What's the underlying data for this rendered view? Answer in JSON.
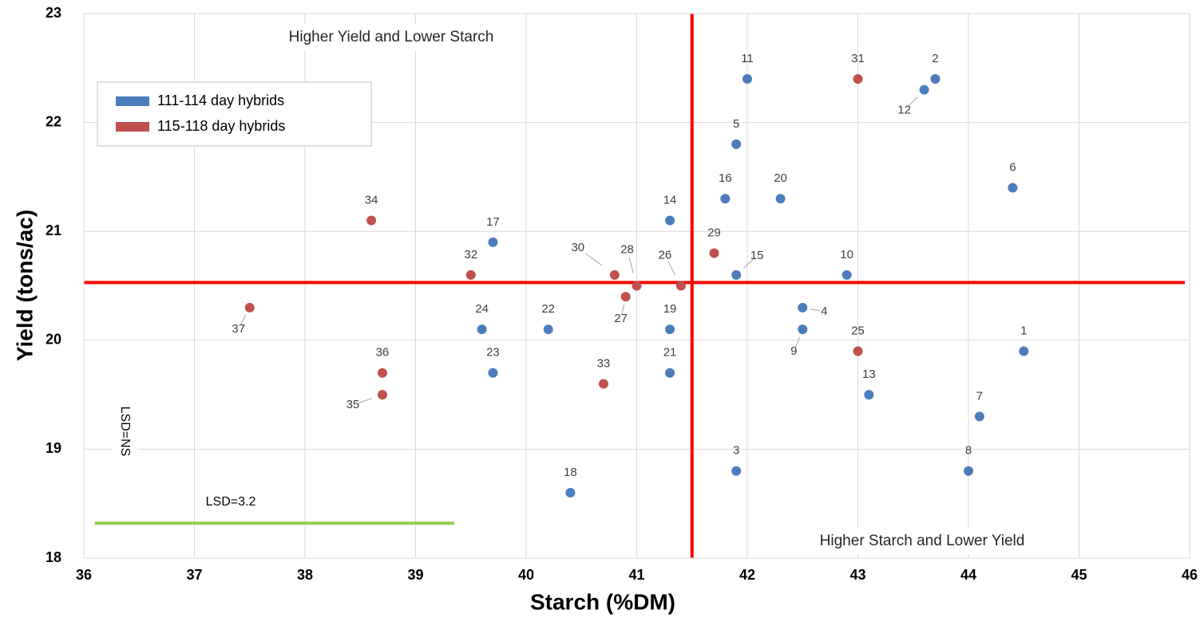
{
  "chart_data": {
    "type": "scatter",
    "x_label": "Starch (%DM)",
    "y_label": "Yield (tons/ac)",
    "xlim": [
      36,
      46
    ],
    "xticks": [
      36,
      37,
      38,
      39,
      40,
      41,
      42,
      43,
      44,
      45,
      46
    ],
    "ylim": [
      18,
      23
    ],
    "yticks": [
      18,
      19,
      20,
      21,
      22,
      23
    ],
    "grid": true,
    "legend_position": "upper left",
    "series": [
      {
        "name": "111-114 day hybrids",
        "color": "#4a7ebb",
        "labels": [
          "1",
          "2",
          "3",
          "4",
          "5",
          "6",
          "7",
          "8",
          "9",
          "10",
          "11",
          "12",
          "13",
          "14",
          "15",
          "16",
          "17",
          "18",
          "19",
          "20",
          "21",
          "22",
          "23",
          "24"
        ],
        "x": [
          44.5,
          43.7,
          41.9,
          42.5,
          41.9,
          44.4,
          44.1,
          44.0,
          42.5,
          42.9,
          42.0,
          43.6,
          43.1,
          41.3,
          41.9,
          41.8,
          39.7,
          40.4,
          41.3,
          42.3,
          41.3,
          40.2,
          39.7,
          39.6
        ],
        "values": [
          19.9,
          22.4,
          18.8,
          20.3,
          21.8,
          21.4,
          19.3,
          18.8,
          20.1,
          20.6,
          22.4,
          22.3,
          19.5,
          21.1,
          20.6,
          21.3,
          20.9,
          18.6,
          20.1,
          21.3,
          19.7,
          20.1,
          19.7,
          20.1
        ]
      },
      {
        "name": "115-118 day hybrids",
        "color": "#c0504d",
        "labels": [
          "25",
          "26",
          "27",
          "28",
          "29",
          "30",
          "31",
          "32",
          "33",
          "34",
          "35",
          "36",
          "37"
        ],
        "x": [
          43.0,
          41.4,
          40.9,
          41.0,
          41.7,
          40.8,
          43.0,
          39.5,
          40.7,
          38.6,
          38.7,
          38.7,
          37.5
        ],
        "values": [
          19.9,
          20.5,
          20.4,
          20.5,
          20.8,
          20.6,
          22.4,
          20.6,
          19.6,
          21.1,
          19.5,
          19.7,
          20.3
        ]
      }
    ],
    "reference_lines": {
      "color": "#ff0000",
      "x": 41.5,
      "y": 20.53
    },
    "lsd_line": {
      "label": "LSD=3.2",
      "color": "#92d050",
      "x": [
        36.1,
        39.35
      ],
      "y": 18.32
    },
    "lsd_y_label": "LSD=NS",
    "annotations": [
      "Higher Yield and Lower Starch",
      "Higher Starch and Lower Yield"
    ]
  }
}
